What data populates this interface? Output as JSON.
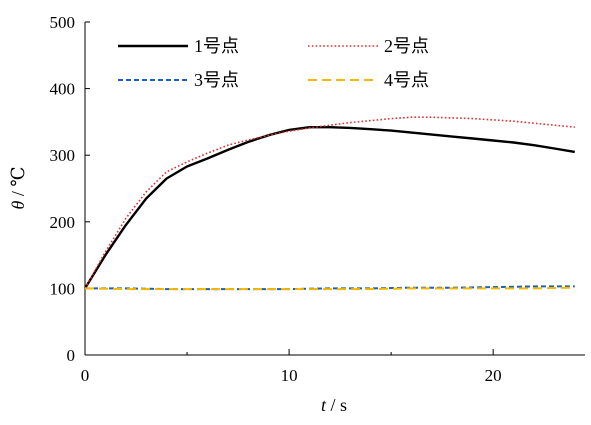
{
  "chart_data": {
    "type": "line",
    "xlabel": {
      "var": "t",
      "rest": " / s"
    },
    "ylabel": {
      "var": "θ",
      "rest": " / ℃"
    },
    "xlim": [
      0,
      24.5
    ],
    "ylim": [
      0,
      500
    ],
    "xticks": [
      0,
      10,
      20
    ],
    "yticks": [
      0,
      100,
      200,
      300,
      400,
      500
    ],
    "grid": false,
    "legend": "top",
    "series": [
      {
        "name": "1号点",
        "color": "#000000",
        "style": "solid",
        "x": [
          0,
          1,
          2,
          3,
          4,
          5,
          6,
          7,
          8,
          9,
          10,
          11,
          12,
          13,
          14,
          15,
          16,
          17,
          18,
          19,
          20,
          21,
          22,
          23,
          24
        ],
        "y": [
          100,
          150,
          195,
          235,
          265,
          283,
          295,
          308,
          320,
          330,
          338,
          342,
          342,
          341,
          339,
          337,
          334,
          331,
          328,
          325,
          322,
          319,
          315,
          310,
          305
        ]
      },
      {
        "name": "2号点",
        "color": "#e03030",
        "style": "dotted",
        "x": [
          0,
          1,
          2,
          3,
          4,
          5,
          6,
          7,
          8,
          9,
          10,
          11,
          12,
          13,
          14,
          15,
          16,
          17,
          18,
          19,
          20,
          21,
          22,
          23,
          24
        ],
        "y": [
          100,
          155,
          205,
          245,
          275,
          290,
          303,
          315,
          323,
          330,
          336,
          341,
          345,
          349,
          352,
          355,
          357,
          357,
          356,
          355,
          353,
          351,
          348,
          345,
          342
        ]
      },
      {
        "name": "3号点",
        "color": "#1f5fb8",
        "style": "dashed",
        "x": [
          0,
          2,
          4,
          6,
          8,
          10,
          12,
          14,
          16,
          18,
          20,
          22,
          24
        ],
        "y": [
          100,
          100,
          99,
          99,
          99,
          99,
          100,
          100,
          101,
          101,
          102,
          103,
          103
        ]
      },
      {
        "name": "4号点",
        "color": "#f5b800",
        "style": "longdash",
        "x": [
          0,
          2,
          4,
          6,
          8,
          10,
          12,
          14,
          16,
          18,
          20,
          22,
          24
        ],
        "y": [
          100,
          99,
          99,
          99,
          99,
          99,
          99,
          99,
          100,
          100,
          100,
          100,
          101
        ]
      }
    ]
  }
}
